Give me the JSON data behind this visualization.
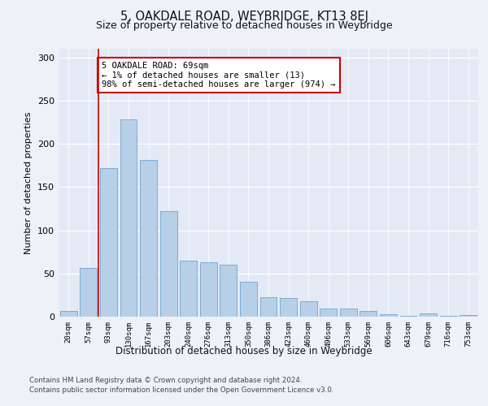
{
  "title1": "5, OAKDALE ROAD, WEYBRIDGE, KT13 8EJ",
  "title2": "Size of property relative to detached houses in Weybridge",
  "xlabel": "Distribution of detached houses by size in Weybridge",
  "ylabel": "Number of detached properties",
  "bar_labels": [
    "20sqm",
    "57sqm",
    "93sqm",
    "130sqm",
    "167sqm",
    "203sqm",
    "240sqm",
    "276sqm",
    "313sqm",
    "350sqm",
    "386sqm",
    "423sqm",
    "460sqm",
    "496sqm",
    "533sqm",
    "569sqm",
    "606sqm",
    "643sqm",
    "679sqm",
    "716sqm",
    "753sqm"
  ],
  "bar_values": [
    7,
    56,
    172,
    228,
    181,
    122,
    65,
    63,
    60,
    40,
    23,
    22,
    18,
    9,
    9,
    7,
    3,
    1,
    4,
    1,
    2
  ],
  "bar_color": "#b8cfe8",
  "bar_edge_color": "#7aadd4",
  "vline_color": "#cc0000",
  "annotation_text": "5 OAKDALE ROAD: 69sqm\n← 1% of detached houses are smaller (13)\n98% of semi-detached houses are larger (974) →",
  "annotation_box_color": "#ffffff",
  "annotation_box_edge": "#cc0000",
  "ylim": [
    0,
    310
  ],
  "yticks": [
    0,
    50,
    100,
    150,
    200,
    250,
    300
  ],
  "footer1": "Contains HM Land Registry data © Crown copyright and database right 2024.",
  "footer2": "Contains public sector information licensed under the Open Government Licence v3.0.",
  "bg_color": "#eef2f8",
  "plot_bg_color": "#e4eaf5"
}
